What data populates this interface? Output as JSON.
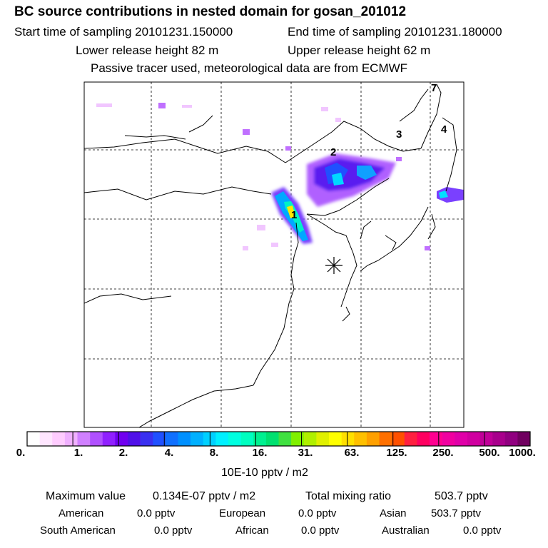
{
  "header": {
    "title": "BC  source contributions in nested domain for gosan_201012",
    "start_time": "Start time of sampling 20101231.150000",
    "end_time": "End time of sampling 20101231.180000",
    "lower_release": "Lower release height   82 m",
    "upper_release": "Upper release height   62 m",
    "tracer_note": "Passive tracer used, meteorological data are from ECMWF"
  },
  "map": {
    "region_labels": [
      "1",
      "2",
      "3",
      "4",
      "7"
    ],
    "receptor_marker": "asterisk-icon"
  },
  "colorbar": {
    "tick_labels": [
      "0.",
      "1.",
      "2.",
      "4.",
      "8.",
      "16.",
      "31.",
      "63.",
      "125.",
      "250.",
      "500.",
      "1000."
    ],
    "units": "10E-10 pptv / m2",
    "colors": [
      "#ffffff",
      "#ffe6ff",
      "#ffccff",
      "#f0b0ff",
      "#d080ff",
      "#b050ff",
      "#9020ff",
      "#7000f0",
      "#5010e8",
      "#3a30f0",
      "#2050ff",
      "#1070ff",
      "#0090ff",
      "#00b0ff",
      "#00d0ff",
      "#00f0ff",
      "#00ffe0",
      "#00ffc0",
      "#00f090",
      "#00e070",
      "#40e040",
      "#80f000",
      "#b0f000",
      "#e0f000",
      "#ffff00",
      "#ffe000",
      "#ffc000",
      "#ffa000",
      "#ff7000",
      "#ff5000",
      "#ff2040",
      "#ff0060",
      "#ff0090",
      "#f000a0",
      "#e000a8",
      "#d000a0",
      "#c00098",
      "#a8008c",
      "#900080",
      "#700060"
    ]
  },
  "summary": {
    "max_value_label": "Maximum value",
    "max_value": "0.134E-07 pptv / m2",
    "total_label": "Total mixing ratio",
    "total_value": "503.7 pptv",
    "regions": [
      {
        "name": "American",
        "value": "0.0 pptv"
      },
      {
        "name": "European",
        "value": "0.0 pptv"
      },
      {
        "name": "Asian",
        "value": "503.7 pptv"
      },
      {
        "name": "South American",
        "value": "0.0 pptv"
      },
      {
        "name": "African",
        "value": "0.0 pptv"
      },
      {
        "name": "Australian",
        "value": "0.0 pptv"
      }
    ]
  }
}
